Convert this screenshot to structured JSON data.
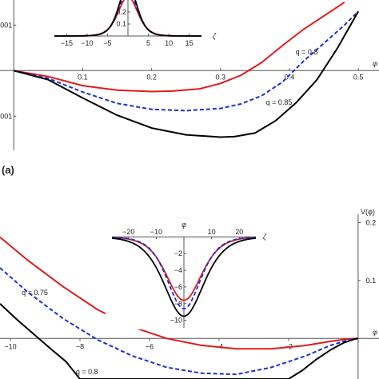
{
  "panel_a_label": "(a)",
  "chart_data": [
    {
      "type": "line",
      "panel": "a",
      "xlabel": "φ",
      "ylabel": "",
      "xlim": [
        -0.02,
        0.53
      ],
      "ylim": [
        -0.00175,
        0.00155
      ],
      "x_ticks": [
        0.1,
        0.2,
        0.3,
        0.4,
        0.5
      ],
      "x_tick_labels": [
        "0.1",
        "0.2",
        "0.3",
        "0.4",
        "0.5"
      ],
      "y_ticks": [
        0.001,
        -0.001
      ],
      "y_tick_labels": [
        "0.001",
        "−0.001"
      ],
      "series": [
        {
          "name": "q = 0.8",
          "color": "#e01b1b",
          "dash": "solid",
          "x": [
            0,
            0.05,
            0.1,
            0.15,
            0.2,
            0.23,
            0.27,
            0.3,
            0.33,
            0.36,
            0.39,
            0.42,
            0.45,
            0.48
          ],
          "y": [
            0,
            -0.00013,
            -0.00033,
            -0.00043,
            -0.00046,
            -0.00045,
            -0.0004,
            -0.00028,
            -0.0001,
            0.00018,
            0.00055,
            0.0009,
            0.0012,
            0.0015
          ]
        },
        {
          "name": "",
          "color": "#1c2fd1",
          "dash": "dashed",
          "x": [
            0,
            0.05,
            0.1,
            0.15,
            0.2,
            0.25,
            0.3,
            0.33,
            0.36,
            0.39,
            0.42,
            0.45,
            0.48,
            0.5
          ],
          "y": [
            0,
            -0.00017,
            -0.00047,
            -0.00072,
            -0.00085,
            -0.00088,
            -0.00083,
            -0.00073,
            -0.00055,
            -0.00025,
            0.0002,
            0.0006,
            0.001,
            0.0013
          ]
        },
        {
          "name": "q = 0.85",
          "color": "#000000",
          "dash": "solid",
          "x": [
            0,
            0.05,
            0.1,
            0.15,
            0.2,
            0.25,
            0.3,
            0.32,
            0.35,
            0.38,
            0.41,
            0.44,
            0.47,
            0.5
          ],
          "y": [
            0,
            -0.0002,
            -0.0006,
            -0.00098,
            -0.00126,
            -0.00141,
            -0.00146,
            -0.00145,
            -0.00137,
            -0.0011,
            -0.0007,
            -0.0002,
            0.0005,
            0.0013
          ]
        }
      ],
      "annotations": [
        {
          "text": "q = 0.8",
          "x": 0.425,
          "y": 0.00036
        },
        {
          "text": "q = 0.85",
          "x": 0.385,
          "y": -0.00075
        }
      ],
      "inset": {
        "type": "line",
        "xlabel": "ζ",
        "xlim": [
          -18,
          18
        ],
        "ylim": [
          0,
          0.3
        ],
        "x_ticks": [
          -15,
          -10,
          -5,
          5,
          10,
          15
        ],
        "x_tick_labels": [
          "−15",
          "−10",
          "−5",
          "5",
          "10",
          "15"
        ],
        "y_ticks": [
          0.1,
          0.2
        ],
        "y_tick_labels": [
          "0.1",
          "0.2"
        ],
        "series": [
          {
            "color": "#e01b1b",
            "dash": "solid",
            "amplitude": 0.33,
            "width": 3.2
          },
          {
            "color": "#1c2fd1",
            "dash": "dashed",
            "amplitude": 0.38,
            "width": 3.0
          },
          {
            "color": "#000000",
            "dash": "solid",
            "amplitude": 0.43,
            "width": 2.9
          }
        ]
      }
    },
    {
      "type": "line",
      "panel": "b",
      "xlabel": "φ",
      "ylabel": "V(φ)",
      "xlim": [
        -10.3,
        0.6
      ],
      "ylim": [
        -0.07,
        0.22
      ],
      "x_ticks": [
        -10,
        -8,
        -6,
        -4,
        -2
      ],
      "x_tick_labels": [
        "−10",
        "−8",
        "−6",
        "−4",
        "−2"
      ],
      "y_ticks": [
        0.2,
        0.1
      ],
      "y_tick_labels": [
        "0.2",
        "0.1"
      ],
      "series": [
        {
          "name": "q = 0.75",
          "color": "#e01b1b",
          "dash": "solid",
          "x": [
            -10.3,
            -9.5,
            -8.5,
            -7.5,
            -6.5,
            -5.5,
            -4.5,
            -3.5,
            -2.5,
            -1.5,
            -0.8,
            -0.3,
            0
          ],
          "y": [
            0.175,
            0.135,
            0.09,
            0.05,
            0.02,
            0.0,
            -0.012,
            -0.018,
            -0.018,
            -0.012,
            -0.005,
            -0.001,
            0
          ]
        },
        {
          "name": "q = 0.8",
          "color": "#1c2fd1",
          "dash": "dashed",
          "x": [
            -10.3,
            -9.5,
            -8.5,
            -7.5,
            -6.5,
            -5.5,
            -4.5,
            -3.5,
            -2.5,
            -1.5,
            -0.8,
            -0.3,
            0
          ],
          "y": [
            0.122,
            0.08,
            0.035,
            -0.002,
            -0.03,
            -0.05,
            -0.06,
            -0.062,
            -0.05,
            -0.03,
            -0.012,
            -0.003,
            0
          ]
        },
        {
          "name": "",
          "color": "#000000",
          "dash": "solid",
          "x": [
            -10.3,
            -9.8,
            -9.3,
            -8.8,
            -8.4,
            -8.0,
            -2.0,
            -1.6,
            -1.2,
            -0.8,
            -0.4,
            -0.1,
            0
          ],
          "y": [
            0.06,
            0.032,
            0.006,
            -0.02,
            -0.04,
            -0.07,
            -0.07,
            -0.055,
            -0.036,
            -0.02,
            -0.007,
            -0.001,
            0
          ]
        }
      ],
      "annotations": [
        {
          "text": "q = 0.75",
          "x": -9.3,
          "y": 0.075
        },
        {
          "text": "q = 0.8",
          "x": -7.8,
          "y": -0.062
        }
      ],
      "inset": {
        "type": "line",
        "xlabel": "ζ",
        "ylabel": "φ",
        "xlim": [
          -26,
          26
        ],
        "ylim": [
          -10.7,
          0.5
        ],
        "x_ticks": [
          -20,
          -10,
          10,
          20
        ],
        "x_tick_labels": [
          "−20",
          "−10",
          "10",
          "20"
        ],
        "y_ticks": [
          -2,
          -4,
          -6,
          -8,
          -10
        ],
        "y_tick_labels": [
          "−2",
          "−4",
          "−6",
          "−8",
          "−10"
        ],
        "series": [
          {
            "color": "#e01b1b",
            "dash": "solid",
            "amplitude": -7.6,
            "width": 8.5
          },
          {
            "color": "#1c2fd1",
            "dash": "dashed",
            "amplitude": -8.6,
            "width": 8.0
          },
          {
            "color": "#000000",
            "dash": "solid",
            "amplitude": -9.5,
            "width": 9.5
          }
        ]
      }
    }
  ]
}
